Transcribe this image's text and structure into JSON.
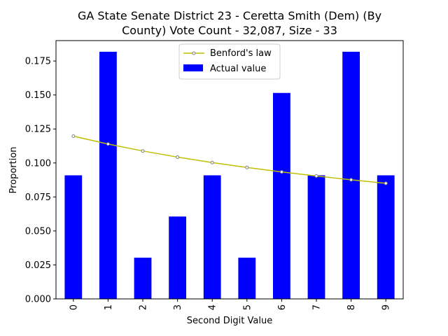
{
  "chart_data": {
    "type": "bar",
    "title_lines": [
      "GA State Senate District 23 - Ceretta Smith (Dem) (By",
      "County) Vote Count - 32,087, Size - 33"
    ],
    "xlabel": "Second Digit Value",
    "ylabel": "Proportion",
    "categories": [
      "0",
      "1",
      "2",
      "3",
      "4",
      "5",
      "6",
      "7",
      "8",
      "9"
    ],
    "ylim": [
      0,
      0.19
    ],
    "yticks": [
      0.0,
      0.025,
      0.05,
      0.075,
      0.1,
      0.125,
      0.15,
      0.175
    ],
    "ytick_labels": [
      "0.000",
      "0.025",
      "0.050",
      "0.075",
      "0.100",
      "0.125",
      "0.150",
      "0.175"
    ],
    "grid": false,
    "legend_position": "top-center",
    "series": [
      {
        "name": "Actual value",
        "kind": "bar",
        "color": "#0000ff",
        "values": [
          0.0909,
          0.1818,
          0.0303,
          0.0606,
          0.0909,
          0.0303,
          0.1515,
          0.0909,
          0.1818,
          0.0909
        ]
      },
      {
        "name": "Benford's law",
        "kind": "line",
        "color": "#bfbf00",
        "marker_color": "#808080",
        "values": [
          0.1197,
          0.1139,
          0.1088,
          0.1043,
          0.1003,
          0.0967,
          0.0934,
          0.0904,
          0.0876,
          0.085
        ]
      }
    ]
  }
}
